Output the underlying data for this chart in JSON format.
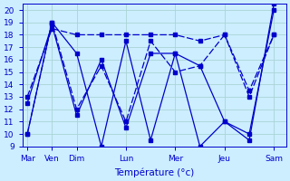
{
  "background_color": "#cceeff",
  "grid_color": "#aad4d4",
  "line_color": "#0000cc",
  "xlabel": "Température (°c)",
  "ylim": [
    9,
    20.5
  ],
  "yticks": [
    9,
    10,
    11,
    12,
    13,
    14,
    15,
    16,
    17,
    18,
    19,
    20
  ],
  "x_tick_positions": [
    0,
    1,
    2,
    4,
    6,
    8,
    10
  ],
  "x_tick_labels": [
    "Mar",
    "Ven",
    "Dim",
    "Lun",
    "Mer",
    "Jeu",
    "Sam"
  ],
  "xlim": [
    -0.2,
    10.5
  ],
  "series1_x": [
    0,
    1,
    2,
    3,
    4,
    5,
    6,
    7,
    8,
    9,
    10
  ],
  "series1_y": [
    10.0,
    19.0,
    16.5,
    9.0,
    17.5,
    9.5,
    16.5,
    9.0,
    11.0,
    10.0,
    20.0
  ],
  "series2_x": [
    0,
    1,
    2,
    3,
    4,
    5,
    6,
    7,
    8,
    9,
    10
  ],
  "series2_y": [
    12.5,
    18.8,
    11.5,
    16.0,
    10.5,
    16.5,
    16.5,
    15.5,
    11.0,
    9.5,
    20.5
  ],
  "series3_x": [
    0,
    1,
    2,
    3,
    4,
    5,
    6,
    7,
    8,
    9,
    10
  ],
  "series3_y": [
    10.0,
    19.0,
    12.0,
    15.5,
    11.0,
    17.5,
    15.0,
    15.5,
    18.0,
    13.5,
    18.0
  ],
  "series4_x": [
    0,
    1,
    2,
    3,
    4,
    5,
    6,
    7,
    8,
    9,
    10
  ],
  "series4_y": [
    13.0,
    18.5,
    18.0,
    18.0,
    18.0,
    18.0,
    18.0,
    17.5,
    18.0,
    13.0,
    18.0
  ]
}
